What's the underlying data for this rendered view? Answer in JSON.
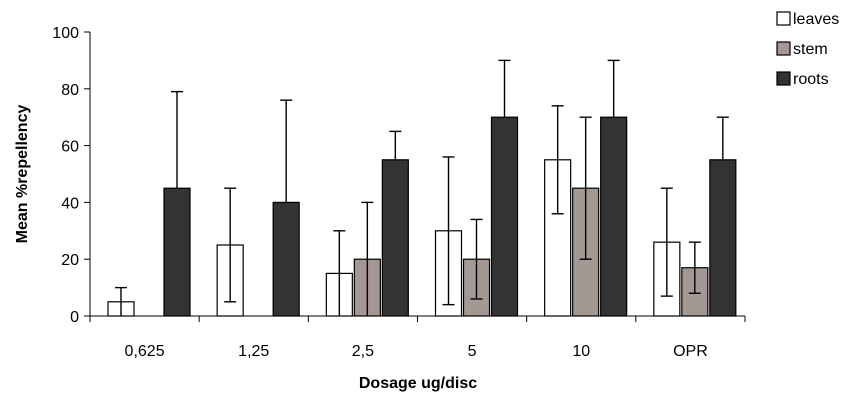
{
  "chart_data": {
    "type": "bar",
    "title": "",
    "xlabel": "Dosage ug/disc",
    "ylabel": "Mean %repellency",
    "ylim": [
      0,
      100
    ],
    "yticks": [
      0,
      20,
      40,
      60,
      80,
      100
    ],
    "categories": [
      "0,625",
      "1,25",
      "2,5",
      "5",
      "10",
      "OPR"
    ],
    "legend_position": "top-right",
    "grid": false,
    "series": [
      {
        "name": "leaves",
        "color": "#ffffff",
        "values": [
          5,
          25,
          15,
          30,
          55,
          26
        ],
        "err_upper": [
          10,
          45,
          30,
          56,
          74,
          45
        ],
        "err_lower": [
          0,
          5,
          0,
          4,
          36,
          7
        ]
      },
      {
        "name": "stem",
        "color": "#a39893",
        "values": [
          0,
          0,
          20,
          20,
          45,
          17
        ],
        "err_upper": [
          null,
          null,
          40,
          34,
          70,
          26
        ],
        "err_lower": [
          null,
          null,
          0,
          6,
          20,
          8
        ]
      },
      {
        "name": "roots",
        "color": "#333333",
        "values": [
          45,
          40,
          55,
          70,
          70,
          55
        ],
        "err_upper": [
          79,
          76,
          65,
          90,
          90,
          70
        ],
        "err_lower": [
          null,
          null,
          null,
          null,
          null,
          null
        ]
      }
    ]
  }
}
